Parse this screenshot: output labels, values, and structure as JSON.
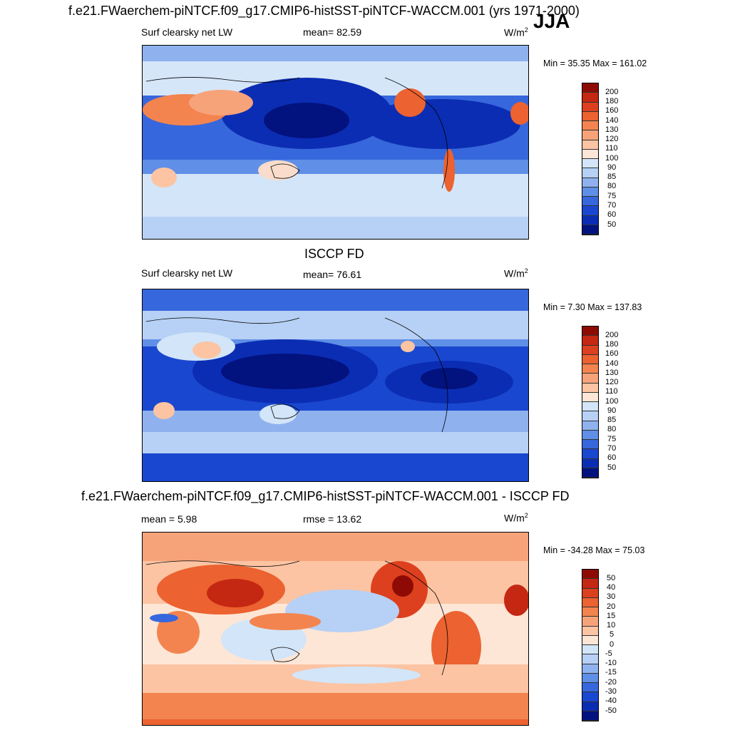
{
  "page_title": "f.e21.FWaerchem-piNTCF.f09_g17.CMIP6-histSST-piNTCF-WACCM.001 (yrs 1971-2000)",
  "season": "JJA",
  "colors": {
    "pos": [
      "#f9dccb",
      "#fcc4a3",
      "#f7a37a",
      "#f3844f",
      "#ec6230",
      "#dd401e",
      "#c42712",
      "#8e0b05"
    ],
    "neg": [
      "#dbe8f9",
      "#b7d0f5",
      "#8fb2ef",
      "#5f8fe6",
      "#3767dc",
      "#1a47cf",
      "#0b2db3",
      "#02127e"
    ],
    "neutral_pos": "#fde6d6",
    "neutral_neg": "#d3e5f8"
  },
  "panels": [
    {
      "id": "model",
      "left_label": "Surf clearsky net LW",
      "center_label": "mean=  82.59",
      "units": "W/m",
      "units_sup": "2",
      "min_max": "Min =  35.35 Max = 161.02",
      "colorbar_ticks": [
        "200",
        "180",
        "160",
        "140",
        "130",
        "120",
        "110",
        "100",
        "90",
        "85",
        "80",
        "75",
        "70",
        "60",
        "50"
      ]
    },
    {
      "id": "obs",
      "heading": "ISCCP FD",
      "left_label": "Surf clearsky net LW",
      "center_label": "mean=  76.61",
      "units": "W/m",
      "units_sup": "2",
      "min_max": "Min =   7.30 Max = 137.83",
      "colorbar_ticks": [
        "200",
        "180",
        "160",
        "140",
        "130",
        "120",
        "110",
        "100",
        "90",
        "85",
        "80",
        "75",
        "70",
        "60",
        "50"
      ]
    },
    {
      "id": "diff",
      "heading": "f.e21.FWaerchem-piNTCF.f09_g17.CMIP6-histSST-piNTCF-WACCM.001 - ISCCP FD",
      "left_label": "mean =   5.98",
      "center_label": "rmse =  13.62",
      "units": "W/m",
      "units_sup": "2",
      "min_max": "Min = -34.28 Max =  75.03",
      "colorbar_ticks": [
        "50",
        "40",
        "30",
        "20",
        "15",
        "10",
        "5",
        "0",
        "-5",
        "-10",
        "-15",
        "-20",
        "-30",
        "-40",
        "-50"
      ]
    }
  ]
}
